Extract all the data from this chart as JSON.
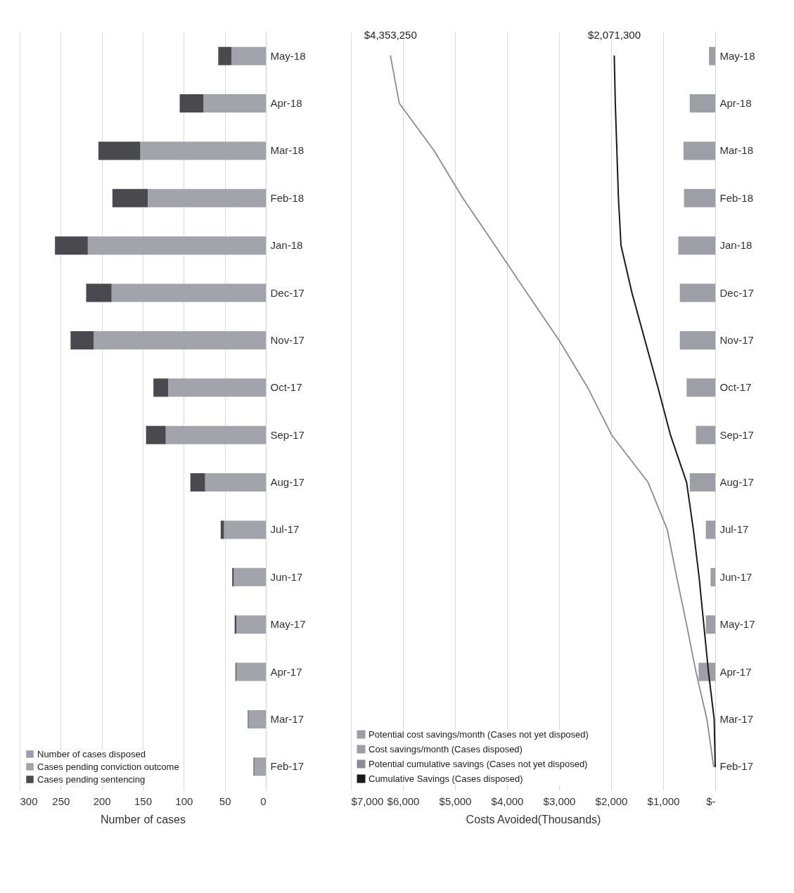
{
  "chart_data": [
    {
      "type": "bar",
      "orientation": "horizontal",
      "xlabel": "Number of cases",
      "categories": [
        "May-18",
        "Apr-18",
        "Mar-18",
        "Feb-18",
        "Jan-18",
        "Dec-17",
        "Nov-17",
        "Oct-17",
        "Sep-17",
        "Aug-17",
        "Jul-17",
        "Jun-17",
        "May-17",
        "Apr-17",
        "Mar-17",
        "Feb-17"
      ],
      "series": [
        {
          "name": "Number of cases disposed",
          "color": "#9d9db5",
          "values": [
            null,
            null,
            null,
            null,
            null,
            null,
            null,
            null,
            null,
            null,
            null,
            null,
            null,
            null,
            null,
            null
          ]
        },
        {
          "name": "Cases pending conviction outcome",
          "color": "#a3a3ab",
          "values": [
            42,
            76,
            153,
            144,
            217,
            188,
            210,
            119,
            122,
            74,
            51,
            39,
            36,
            36,
            21,
            14
          ]
        },
        {
          "name": "Cases pending sentencing",
          "color": "#4a4a4e",
          "values": [
            16,
            29,
            51,
            43,
            40,
            31,
            28,
            18,
            24,
            18,
            4,
            2,
            2,
            1,
            1,
            1
          ]
        }
      ],
      "stacked": true,
      "xlim": [
        300,
        0
      ],
      "xticks": [
        300,
        250,
        200,
        150,
        100,
        50,
        0
      ],
      "grid": "x",
      "legend": "bottom left"
    },
    {
      "type": "bar",
      "orientation": "horizontal",
      "xlabel": "Costs Avoided(Thousands)",
      "categories": [
        "May-18",
        "Apr-18",
        "Mar-18",
        "Feb-18",
        "Jan-18",
        "Dec-17",
        "Nov-17",
        "Oct-17",
        "Sep-17",
        "Aug-17",
        "Jul-17",
        "Jun-17",
        "May-17",
        "Apr-17",
        "Mar-17",
        "Feb-17"
      ],
      "series": [
        {
          "name": "Potential cost savings/month (Cases not yet disposed)",
          "color": "#9e9ea6",
          "values": [
            120,
            490,
            610,
            600,
            710,
            680,
            680,
            550,
            370,
            490,
            180,
            90,
            180,
            320,
            null,
            null
          ]
        },
        {
          "name": "Cost savings/month (Cases disposed)",
          "color": "#9e9ea6",
          "values": [
            null,
            null,
            null,
            null,
            null,
            null,
            null,
            null,
            null,
            null,
            null,
            null,
            null,
            null,
            null,
            null
          ]
        },
        {
          "name": "Potential cumulative savings (Cases not yet disposed)",
          "type": "line",
          "color": "#8c8c96",
          "values": [
            6240,
            6070,
            5400,
            4850,
            4230,
            3620,
            3000,
            2450,
            1990,
            1290,
            920,
            740,
            550,
            370,
            160,
            30
          ]
        },
        {
          "name": "Cumulative Savings (Cases disposed)",
          "type": "line",
          "color": "#1a1a1a",
          "values": [
            1940,
            1920,
            1890,
            1860,
            1810,
            1600,
            1350,
            1100,
            860,
            550,
            420,
            310,
            220,
            130,
            20,
            0
          ]
        }
      ],
      "xlim": [
        7000,
        0
      ],
      "xticks": [
        {
          "value": 7000,
          "label": "$7,000"
        },
        {
          "value": 6000,
          "label": "$6,000"
        },
        {
          "value": 5000,
          "label": "$5,000"
        },
        {
          "value": 4000,
          "label": "$4,000"
        },
        {
          "value": 3000,
          "label": "$3,000"
        },
        {
          "value": 2000,
          "label": "$2,000"
        },
        {
          "value": 1000,
          "label": "$1,000"
        },
        {
          "value": 0,
          "label": "$-"
        }
      ],
      "grid": "x",
      "legend": "bottom left",
      "annotations": [
        {
          "text": "$4,353,250",
          "x": 6240,
          "y": "May-18"
        },
        {
          "text": "$2,071,300",
          "x": 1940,
          "y": "May-18"
        }
      ]
    }
  ]
}
